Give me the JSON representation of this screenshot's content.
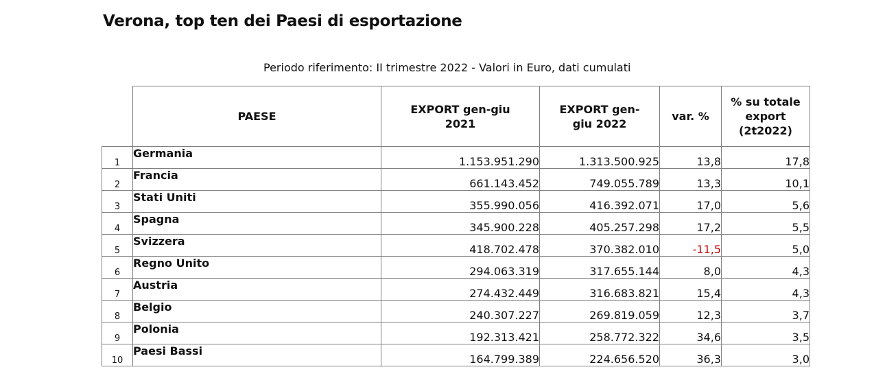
{
  "title": "Verona, top ten dei Paesi di esportazione",
  "subtitle": "Periodo riferimento: II trimestre 2022 - Valori in Euro, dati cumulati",
  "colors": {
    "negative": "#c00000"
  },
  "table": {
    "headers": {
      "paese": "PAESE",
      "export_2021": "EXPORT gen-giu 2021",
      "export_2022": "EXPORT gen-giu 2022",
      "var": "var. %",
      "share": "% su totale export (2t2022)"
    },
    "rows": [
      {
        "rank": "1",
        "paese": "Germania",
        "export_2021": "1.153.951.290",
        "export_2022": "1.313.500.925",
        "var": "13,8",
        "share": "17,8"
      },
      {
        "rank": "2",
        "paese": "Francia",
        "export_2021": "661.143.452",
        "export_2022": "749.055.789",
        "var": "13,3",
        "share": "10,1"
      },
      {
        "rank": "3",
        "paese": "Stati Uniti",
        "export_2021": "355.990.056",
        "export_2022": "416.392.071",
        "var": "17,0",
        "share": "5,6"
      },
      {
        "rank": "4",
        "paese": "Spagna",
        "export_2021": "345.900.228",
        "export_2022": "405.257.298",
        "var": "17,2",
        "share": "5,5"
      },
      {
        "rank": "5",
        "paese": "Svizzera",
        "export_2021": "418.702.478",
        "export_2022": "370.382.010",
        "var": "-11,5",
        "share": "5,0"
      },
      {
        "rank": "6",
        "paese": "Regno Unito",
        "export_2021": "294.063.319",
        "export_2022": "317.655.144",
        "var": "8,0",
        "share": "4,3"
      },
      {
        "rank": "7",
        "paese": "Austria",
        "export_2021": "274.432.449",
        "export_2022": "316.683.821",
        "var": "15,4",
        "share": "4,3"
      },
      {
        "rank": "8",
        "paese": "Belgio",
        "export_2021": "240.307.227",
        "export_2022": "269.819.059",
        "var": "12,3",
        "share": "3,7"
      },
      {
        "rank": "9",
        "paese": "Polonia",
        "export_2021": "192.313.421",
        "export_2022": "258.772.322",
        "var": "34,6",
        "share": "3,5"
      },
      {
        "rank": "10",
        "paese": "Paesi Bassi",
        "export_2021": "164.799.389",
        "export_2022": "224.656.520",
        "var": "36,3",
        "share": "3,0"
      }
    ]
  }
}
